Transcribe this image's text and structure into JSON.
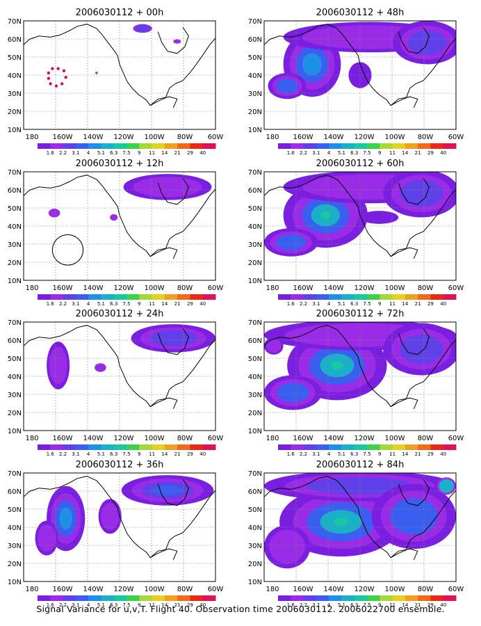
{
  "panels": [
    {
      "title": "2006030112 + 00h"
    },
    {
      "title": "2006030112 + 48h"
    },
    {
      "title": "2006030112 + 12h"
    },
    {
      "title": "2006030112 + 60h"
    },
    {
      "title": "2006030112 + 24h"
    },
    {
      "title": "2006030112 + 72h"
    },
    {
      "title": "2006030112 + 36h"
    },
    {
      "title": "2006030112 + 84h"
    }
  ],
  "map": {
    "lat_labels": [
      "70N",
      "60N",
      "50N",
      "40N",
      "30N",
      "20N",
      "10N"
    ],
    "lon_labels": [
      "180",
      "160W",
      "140W",
      "120W",
      "100W",
      "80W",
      "60W"
    ]
  },
  "colorbar": {
    "labels": [
      "1.6",
      "2.2",
      "3.1",
      "4",
      "5.1",
      "6.3",
      "7.5",
      "9",
      "11",
      "14",
      "21",
      "29",
      "40"
    ],
    "colors": [
      "#7a1fe0",
      "#9a2ce8",
      "#6040e8",
      "#3a5ef0",
      "#1e90e8",
      "#19b0c8",
      "#17c8a0",
      "#3ad24a",
      "#a8d838",
      "#e6d020",
      "#f0a020",
      "#f06a18",
      "#e82818",
      "#e0105a"
    ]
  },
  "caption": "Signal Variance for u,v,T. Flight 40. Observation time 2006030112. 2006022700 ensemble."
}
